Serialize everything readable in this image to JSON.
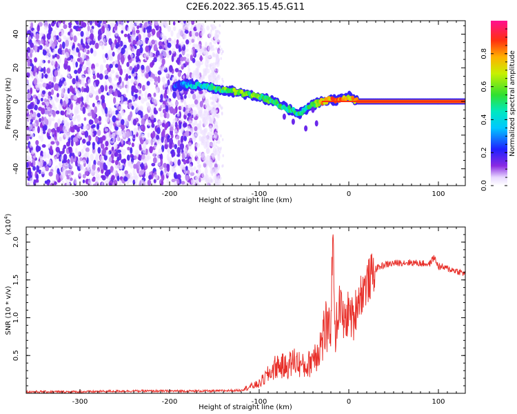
{
  "title": "C2E6.2022.365.15.45.G11",
  "chart_data": [
    {
      "type": "heatmap",
      "xlabel": "Height of straight line (km)",
      "ylabel": "Frequency (Hz)",
      "xlim": [
        -360,
        130
      ],
      "ylim": [
        -50,
        48
      ],
      "xticks": [
        -300,
        -200,
        -100,
        0,
        100
      ],
      "yticks": [
        -40,
        -20,
        0,
        20,
        40
      ],
      "colorbar": {
        "label": "Normalized spectral amplitude",
        "range": [
          0.0,
          1.0
        ],
        "ticks": [
          "0.0",
          "0.2",
          "0.4",
          "0.6",
          "0.8"
        ],
        "tick_values": [
          0.0,
          0.2,
          0.4,
          0.6,
          0.8
        ],
        "colormap": "rainbow (white-purple-blue-cyan-green-yellow-red-magenta)"
      },
      "track": {
        "x": [
          -195,
          -180,
          -160,
          -140,
          -120,
          -100,
          -85,
          -70,
          -55,
          -40,
          -30,
          -20,
          -10,
          0,
          10,
          50,
          100,
          130
        ],
        "y": [
          9,
          10,
          9,
          7,
          5,
          3,
          0,
          -4,
          -7,
          -2,
          0,
          1,
          1,
          3,
          0,
          0,
          0,
          0
        ],
        "intensity": [
          0.2,
          0.35,
          0.45,
          0.55,
          0.6,
          0.55,
          0.5,
          0.5,
          0.45,
          0.5,
          0.75,
          0.8,
          0.85,
          0.7,
          0.85,
          0.85,
          0.85,
          0.85
        ]
      },
      "noise_region_x": [
        -360,
        -155
      ]
    },
    {
      "type": "line",
      "xlabel": "Height of straight line (km)",
      "ylabel": "SNR (10 * v/v)",
      "yscale_label": "(x10",
      "yscale_exp": "4",
      "yscale_close": ")",
      "xlim": [
        -360,
        130
      ],
      "ylim": [
        0,
        2.2
      ],
      "xticks": [
        -300,
        -200,
        -100,
        0,
        100
      ],
      "yticks": [
        "0.5",
        "1.0",
        "1.5",
        "2.0"
      ],
      "ytick_values": [
        0.5,
        1.0,
        1.5,
        2.0
      ],
      "color": "#e8302a",
      "series": [
        {
          "x": [
            -360,
            -300,
            -250,
            -200,
            -150,
            -120,
            -100,
            -90,
            -80,
            -70,
            -60,
            -50,
            -45,
            -40,
            -35,
            -30,
            -25,
            -20,
            -18,
            -15,
            -10,
            -5,
            0,
            5,
            10,
            15,
            20,
            25,
            30,
            40,
            50,
            60,
            70,
            80,
            90,
            95,
            100,
            110,
            120,
            130
          ],
          "y": [
            0.02,
            0.02,
            0.03,
            0.03,
            0.03,
            0.04,
            0.1,
            0.2,
            0.3,
            0.28,
            0.35,
            0.28,
            0.3,
            0.4,
            0.45,
            0.55,
            0.75,
            0.9,
            2.1,
            0.8,
            1.2,
            0.9,
            1.1,
            0.95,
            1.25,
            1.35,
            1.45,
            1.55,
            1.65,
            1.7,
            1.72,
            1.73,
            1.73,
            1.72,
            1.71,
            1.8,
            1.68,
            1.65,
            1.62,
            1.58
          ]
        }
      ]
    }
  ]
}
